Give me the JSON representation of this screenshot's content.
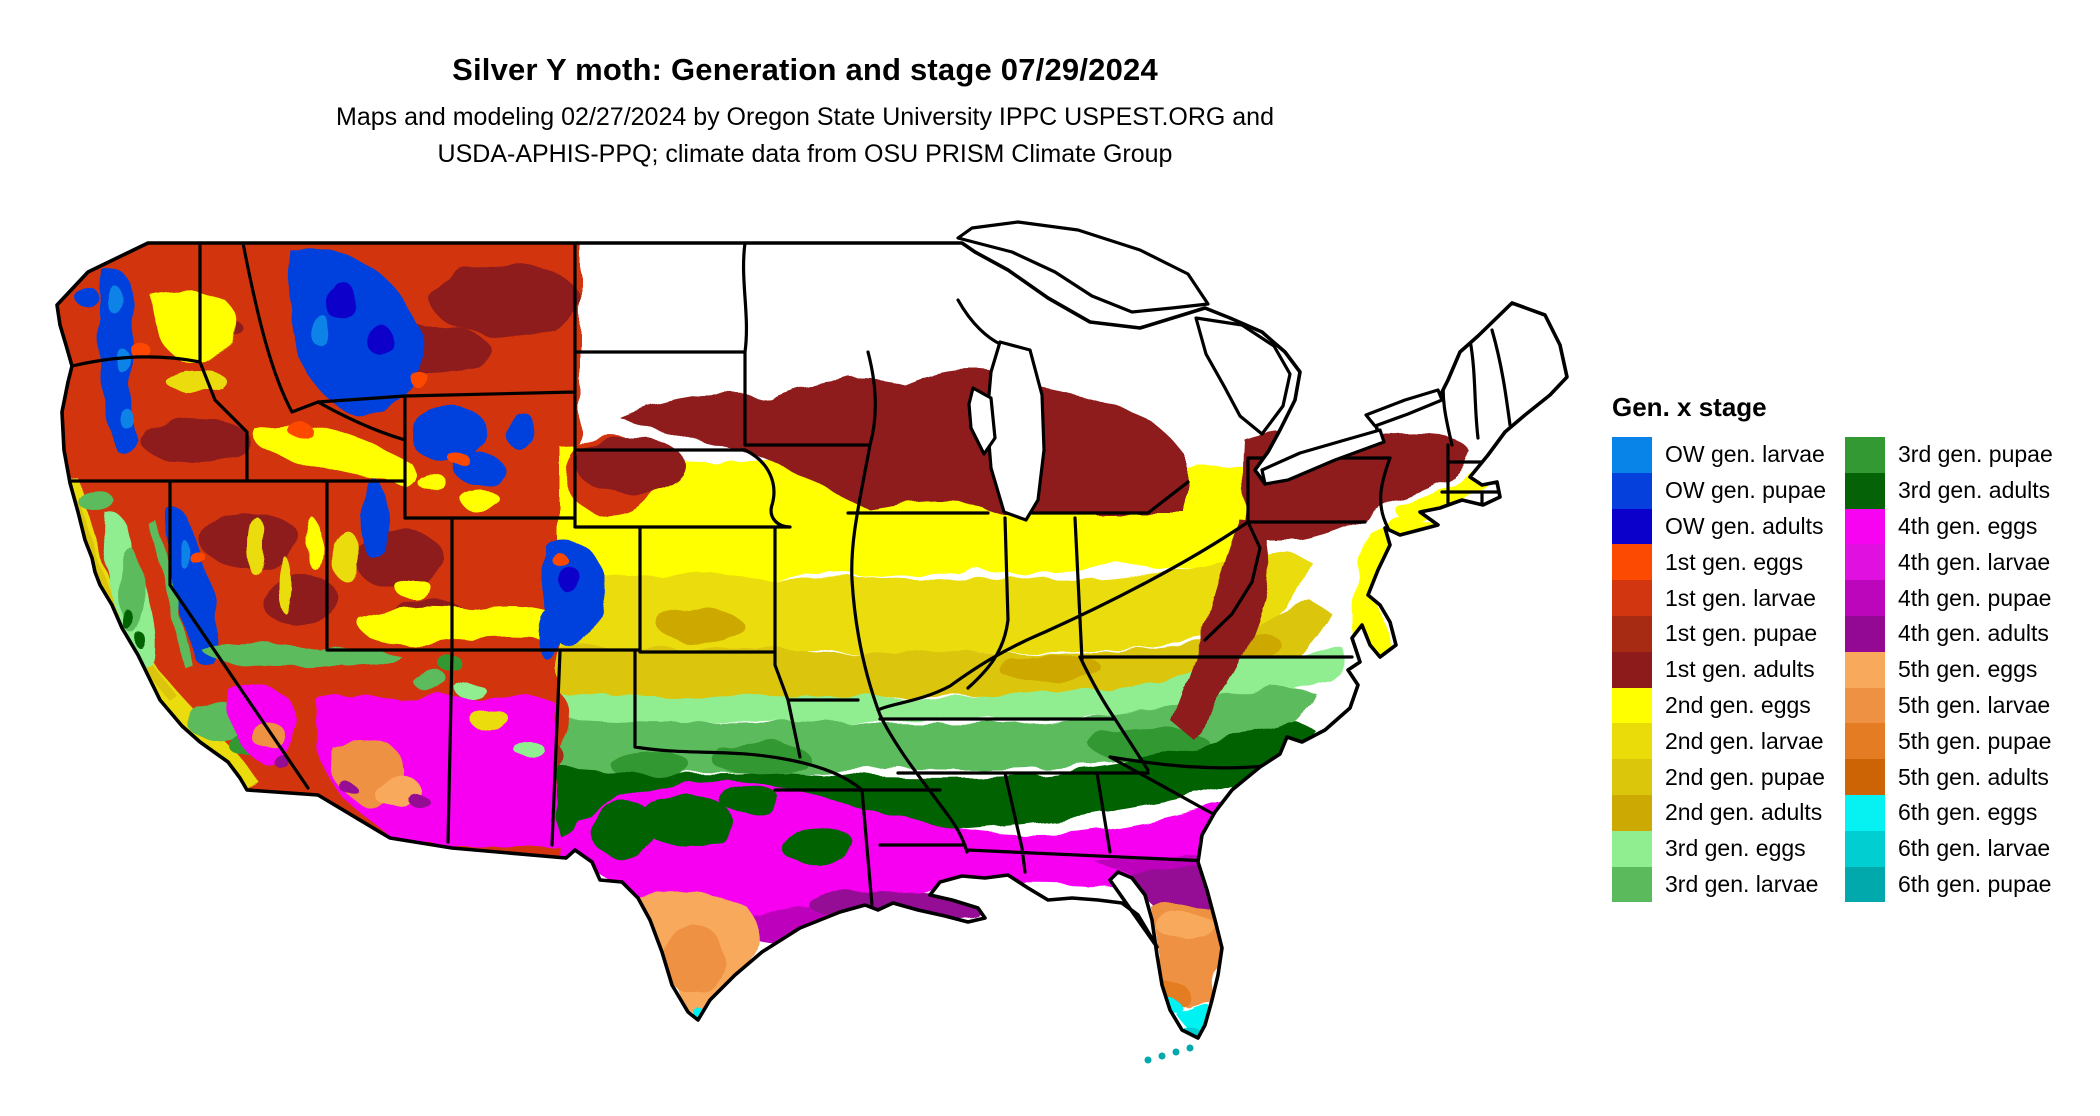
{
  "title": "Silver Y moth: Generation and stage 07/29/2024",
  "subtitle": {
    "line1": "Maps and modeling 02/27/2024 by Oregon State University IPPC USPEST.ORG and",
    "line2": "USDA-APHIS-PPQ; climate data from OSU PRISM Climate Group"
  },
  "legend": {
    "title": "Gen. x stage",
    "columns": [
      [
        {
          "label": "OW gen. larvae",
          "color": "#0883E8"
        },
        {
          "label": "OW gen. pupae",
          "color": "#0540DC"
        },
        {
          "label": "OW gen. adults",
          "color": "#0B00CB"
        },
        {
          "label": "1st gen. eggs",
          "color": "#FD4A03"
        },
        {
          "label": "1st gen. larvae",
          "color": "#D23610"
        },
        {
          "label": "1st gen. pupae",
          "color": "#A62B12"
        },
        {
          "label": "1st gen. adults",
          "color": "#8E1B1B"
        },
        {
          "label": "2nd gen. eggs",
          "color": "#FFFF00"
        },
        {
          "label": "2nd gen. larvae",
          "color": "#EADC08"
        },
        {
          "label": "2nd gen. pupae",
          "color": "#DCC60B"
        },
        {
          "label": "2nd gen. adults",
          "color": "#CDA903"
        },
        {
          "label": "3rd gen. eggs",
          "color": "#90EE90"
        },
        {
          "label": "3rd gen. larvae",
          "color": "#5BBB5C"
        }
      ],
      [
        {
          "label": "3rd gen. pupae",
          "color": "#339933"
        },
        {
          "label": "3rd gen. adults",
          "color": "#066206"
        },
        {
          "label": "4th gen. eggs",
          "color": "#F703F1"
        },
        {
          "label": "4th gen. larvae",
          "color": "#E010E0"
        },
        {
          "label": "4th gen. pupae",
          "color": "#BC06BC"
        },
        {
          "label": "4th gen. adults",
          "color": "#940994"
        },
        {
          "label": "5th gen. eggs",
          "color": "#F8A95C"
        },
        {
          "label": "5th gen. larvae",
          "color": "#EF9143"
        },
        {
          "label": "5th gen. pupae",
          "color": "#E47C24"
        },
        {
          "label": "5th gen. adults",
          "color": "#CC6406"
        },
        {
          "label": "6th gen. eggs",
          "color": "#06F2F2"
        },
        {
          "label": "6th gen. larvae",
          "color": "#00CED1"
        },
        {
          "label": "6th gen. pupae",
          "color": "#02A9AC"
        }
      ]
    ]
  }
}
